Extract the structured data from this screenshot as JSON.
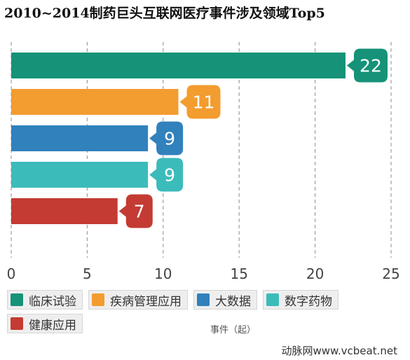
{
  "credit": "动脉网www.vcbeat.net",
  "chart_data": {
    "type": "bar",
    "orientation": "horizontal",
    "title": "2010~2014制药巨头互联网医疗事件涉及领域Top5",
    "xlabel": "事件（起）",
    "ylabel": "",
    "xlim": [
      0,
      25
    ],
    "xticks": [
      "0",
      "5",
      "10",
      "15",
      "20",
      "25"
    ],
    "grid": true,
    "legend_position": "bottom",
    "categories": [
      "临床试验",
      "疾病管理应用",
      "大数据",
      "数字药物",
      "健康应用"
    ],
    "values": [
      22,
      11,
      9,
      9,
      7
    ],
    "colors": [
      "#159277",
      "#f39c2f",
      "#3181bd",
      "#3cbbbb",
      "#c43b33"
    ]
  }
}
